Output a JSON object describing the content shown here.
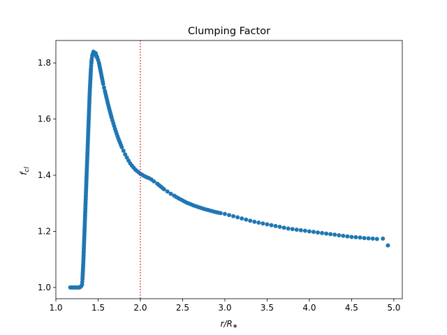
{
  "chart_data": {
    "type": "scatter",
    "title": "Clumping Factor",
    "xlabel": "r/R∗",
    "ylabel": "f_cl",
    "xlim": [
      1.0,
      5.1
    ],
    "ylim": [
      0.96,
      1.88
    ],
    "xticks": [
      1.0,
      1.5,
      2.0,
      2.5,
      3.0,
      3.5,
      4.0,
      4.5,
      5.0
    ],
    "xtick_labels": [
      "1.0",
      "1.5",
      "2.0",
      "2.5",
      "3.0",
      "3.5",
      "4.0",
      "4.5",
      "5.0"
    ],
    "yticks": [
      1.0,
      1.2,
      1.4,
      1.6,
      1.8
    ],
    "ytick_labels": [
      "1.0",
      "1.2",
      "1.4",
      "1.6",
      "1.8"
    ],
    "grid": false,
    "marker_color": "#1f77b4",
    "vline": {
      "x": 2.0,
      "color": "#d62728",
      "style": "dotted"
    },
    "series": [
      {
        "x": [
          1.17,
          1.18,
          1.19,
          1.2,
          1.21,
          1.22,
          1.23,
          1.24,
          1.25,
          1.26,
          1.27,
          1.28,
          1.29,
          1.3,
          1.31,
          1.315,
          1.32,
          1.325,
          1.33,
          1.335,
          1.34,
          1.345,
          1.35,
          1.355,
          1.36,
          1.365,
          1.37,
          1.375,
          1.38,
          1.385,
          1.39,
          1.395,
          1.4,
          1.405,
          1.41,
          1.415,
          1.42,
          1.425,
          1.43,
          1.435,
          1.44,
          1.445,
          1.45,
          1.455,
          1.46,
          1.465,
          1.47,
          1.475,
          1.48,
          1.485,
          1.49,
          1.5,
          1.51,
          1.52,
          1.53,
          1.54,
          1.55,
          1.56,
          1.57,
          1.58,
          1.6,
          1.62,
          1.64,
          1.66,
          1.68,
          1.7,
          1.72,
          1.74,
          1.76,
          1.78,
          1.8,
          1.82,
          1.84,
          1.86,
          1.88,
          1.9,
          1.92,
          1.94,
          1.96,
          1.98,
          2.0,
          2.02,
          2.04,
          2.06,
          2.08,
          2.1,
          2.13,
          2.16,
          2.2,
          2.24,
          2.28,
          2.32,
          2.36,
          2.4,
          2.45,
          2.5,
          2.55,
          2.6,
          2.65,
          2.7,
          2.75,
          2.8,
          2.85,
          2.9,
          2.95,
          3.0,
          3.05,
          3.1,
          3.15,
          3.2,
          3.25,
          3.3,
          3.35,
          3.4,
          3.45,
          3.5,
          3.55,
          3.6,
          3.65,
          3.7,
          3.75,
          3.8,
          3.85,
          3.9,
          3.95,
          4.0,
          4.05,
          4.1,
          4.15,
          4.2,
          4.25,
          4.3,
          4.35,
          4.4,
          4.45,
          4.5,
          4.55,
          4.6,
          4.65,
          4.7,
          4.75,
          4.8,
          4.87,
          4.93
        ],
        "y": [
          1.0,
          1.0,
          1.0,
          1.0,
          1.0,
          1.0,
          1.0,
          1.0,
          1.0,
          1.0,
          1.0,
          1.0,
          1.002,
          1.005,
          1.01,
          1.03,
          1.06,
          1.09,
          1.13,
          1.17,
          1.21,
          1.25,
          1.29,
          1.33,
          1.37,
          1.41,
          1.45,
          1.49,
          1.53,
          1.57,
          1.61,
          1.65,
          1.69,
          1.72,
          1.75,
          1.78,
          1.8,
          1.815,
          1.825,
          1.83,
          1.835,
          1.84,
          1.838,
          1.835,
          1.83,
          1.83,
          1.835,
          1.83,
          1.825,
          1.82,
          1.82,
          1.81,
          1.8,
          1.785,
          1.77,
          1.755,
          1.74,
          1.725,
          1.712,
          1.7,
          1.675,
          1.65,
          1.627,
          1.605,
          1.585,
          1.565,
          1.547,
          1.53,
          1.515,
          1.5,
          1.487,
          1.474,
          1.463,
          1.452,
          1.442,
          1.434,
          1.427,
          1.42,
          1.415,
          1.41,
          1.405,
          1.402,
          1.398,
          1.395,
          1.392,
          1.39,
          1.385,
          1.378,
          1.37,
          1.36,
          1.35,
          1.342,
          1.334,
          1.327,
          1.318,
          1.31,
          1.302,
          1.296,
          1.29,
          1.285,
          1.28,
          1.276,
          1.272,
          1.268,
          1.265,
          1.262,
          1.258,
          1.254,
          1.25,
          1.246,
          1.242,
          1.238,
          1.234,
          1.231,
          1.228,
          1.225,
          1.222,
          1.219,
          1.216,
          1.213,
          1.21,
          1.208,
          1.206,
          1.204,
          1.202,
          1.2,
          1.198,
          1.196,
          1.194,
          1.192,
          1.19,
          1.188,
          1.186,
          1.184,
          1.182,
          1.18,
          1.179,
          1.178,
          1.176,
          1.175,
          1.174,
          1.173,
          1.174,
          1.15
        ]
      }
    ]
  }
}
